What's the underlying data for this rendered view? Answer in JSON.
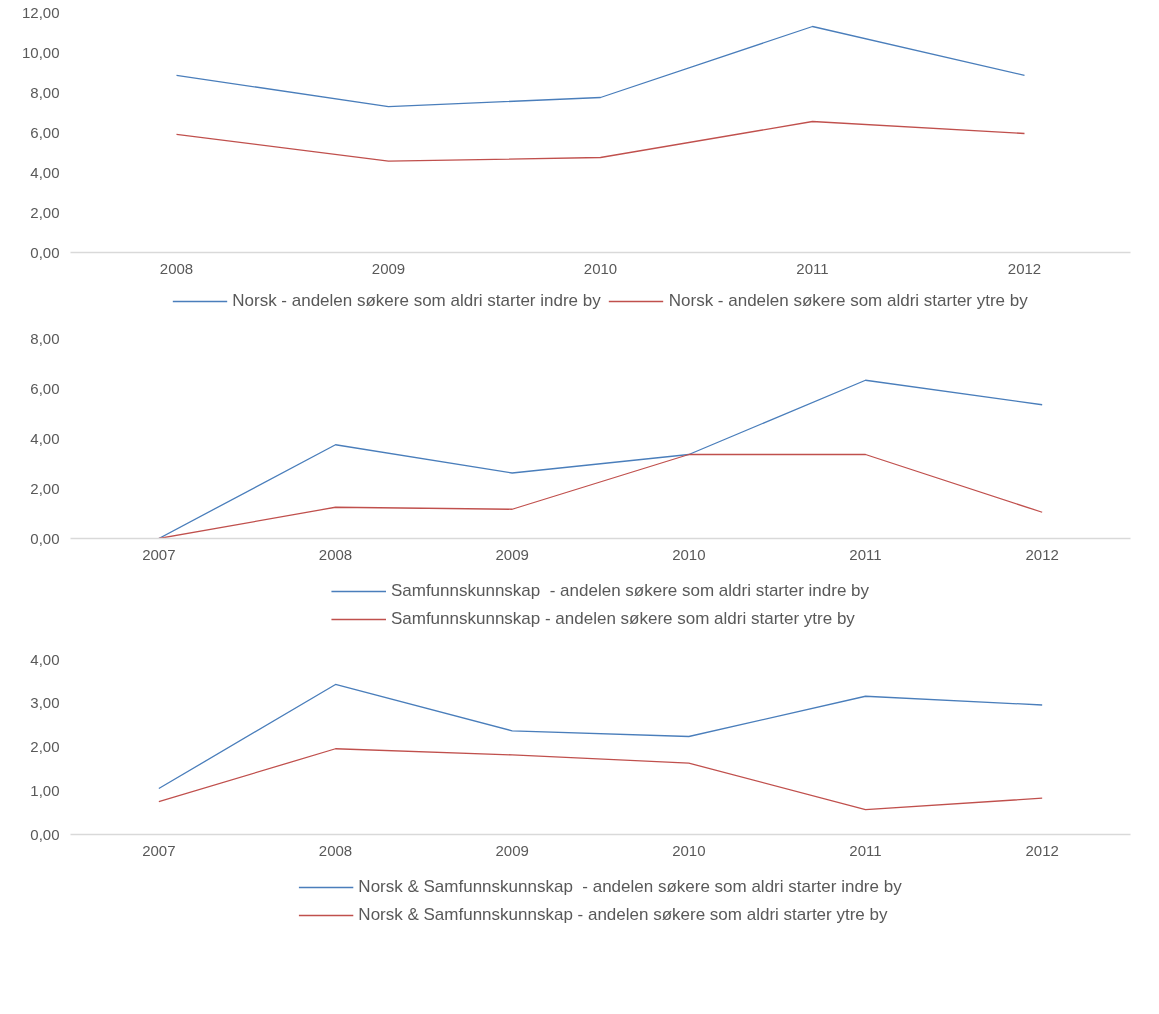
{
  "chart_data": [
    {
      "type": "line",
      "categories": [
        "2008",
        "2009",
        "2010",
        "2011",
        "2012"
      ],
      "series": [
        {
          "name": "Norsk - andelen søkere som aldri starter indre by",
          "color": "#4a7ebb",
          "values": [
            8.86,
            7.29,
            7.75,
            11.3,
            8.86
          ]
        },
        {
          "name": "Norsk - andelen søkere som aldri starter ytre by",
          "color": "#c0504d",
          "values": [
            5.91,
            4.57,
            4.75,
            6.55,
            5.95
          ]
        }
      ],
      "ylim": [
        0,
        12
      ],
      "yticks": [
        {
          "value": 0,
          "label": "0,00"
        },
        {
          "value": 2,
          "label": "2,00"
        },
        {
          "value": 4,
          "label": "4,00"
        },
        {
          "value": 6,
          "label": "6,00"
        },
        {
          "value": 8,
          "label": "8,00"
        },
        {
          "value": 10,
          "label": "10,00"
        },
        {
          "value": 12,
          "label": "12,00"
        }
      ],
      "grid": false,
      "legend": "bottom",
      "marker": "none",
      "line_style": "solid"
    },
    {
      "type": "line",
      "categories": [
        "2007",
        "2008",
        "2009",
        "2010",
        "2011",
        "2012"
      ],
      "series": [
        {
          "name": "Samfunnskunnskap  - andelen søkere som aldri starter indre by",
          "color": "#4a7ebb",
          "values": [
            0,
            3.75,
            2.62,
            3.36,
            6.33,
            5.35
          ]
        },
        {
          "name": "Samfunnskunnskap - andelen søkere som aldri starter ytre by",
          "color": "#c0504d",
          "values": [
            0,
            1.25,
            1.17,
            3.36,
            3.36,
            1.05
          ]
        }
      ],
      "ylim": [
        0,
        8
      ],
      "yticks": [
        {
          "value": 0,
          "label": "0,00"
        },
        {
          "value": 2,
          "label": "2,00"
        },
        {
          "value": 4,
          "label": "4,00"
        },
        {
          "value": 6,
          "label": "6,00"
        },
        {
          "value": 8,
          "label": "8,00"
        }
      ],
      "grid": false,
      "legend": "bottom",
      "marker": "none",
      "line_style": "solid"
    },
    {
      "type": "line",
      "categories": [
        "2007",
        "2008",
        "2009",
        "2010",
        "2011",
        "2012"
      ],
      "series": [
        {
          "name": "Norsk & Samfunnskunnskap  - andelen søkere som aldri starter indre by",
          "color": "#4a7ebb",
          "values": [
            1.05,
            3.43,
            2.37,
            2.24,
            3.16,
            2.96
          ]
        },
        {
          "name": "Norsk & Samfunnskunnskap - andelen søkere som aldri starter ytre by",
          "color": "#c0504d",
          "values": [
            0.75,
            1.96,
            1.82,
            1.63,
            0.57,
            0.83
          ]
        }
      ],
      "ylim": [
        0,
        4
      ],
      "yticks": [
        {
          "value": 0,
          "label": "0,00"
        },
        {
          "value": 1,
          "label": "1,00"
        },
        {
          "value": 2,
          "label": "2,00"
        },
        {
          "value": 3,
          "label": "3,00"
        },
        {
          "value": 4,
          "label": "4,00"
        }
      ],
      "grid": false,
      "legend": "bottom",
      "marker": "none",
      "line_style": "solid"
    }
  ]
}
